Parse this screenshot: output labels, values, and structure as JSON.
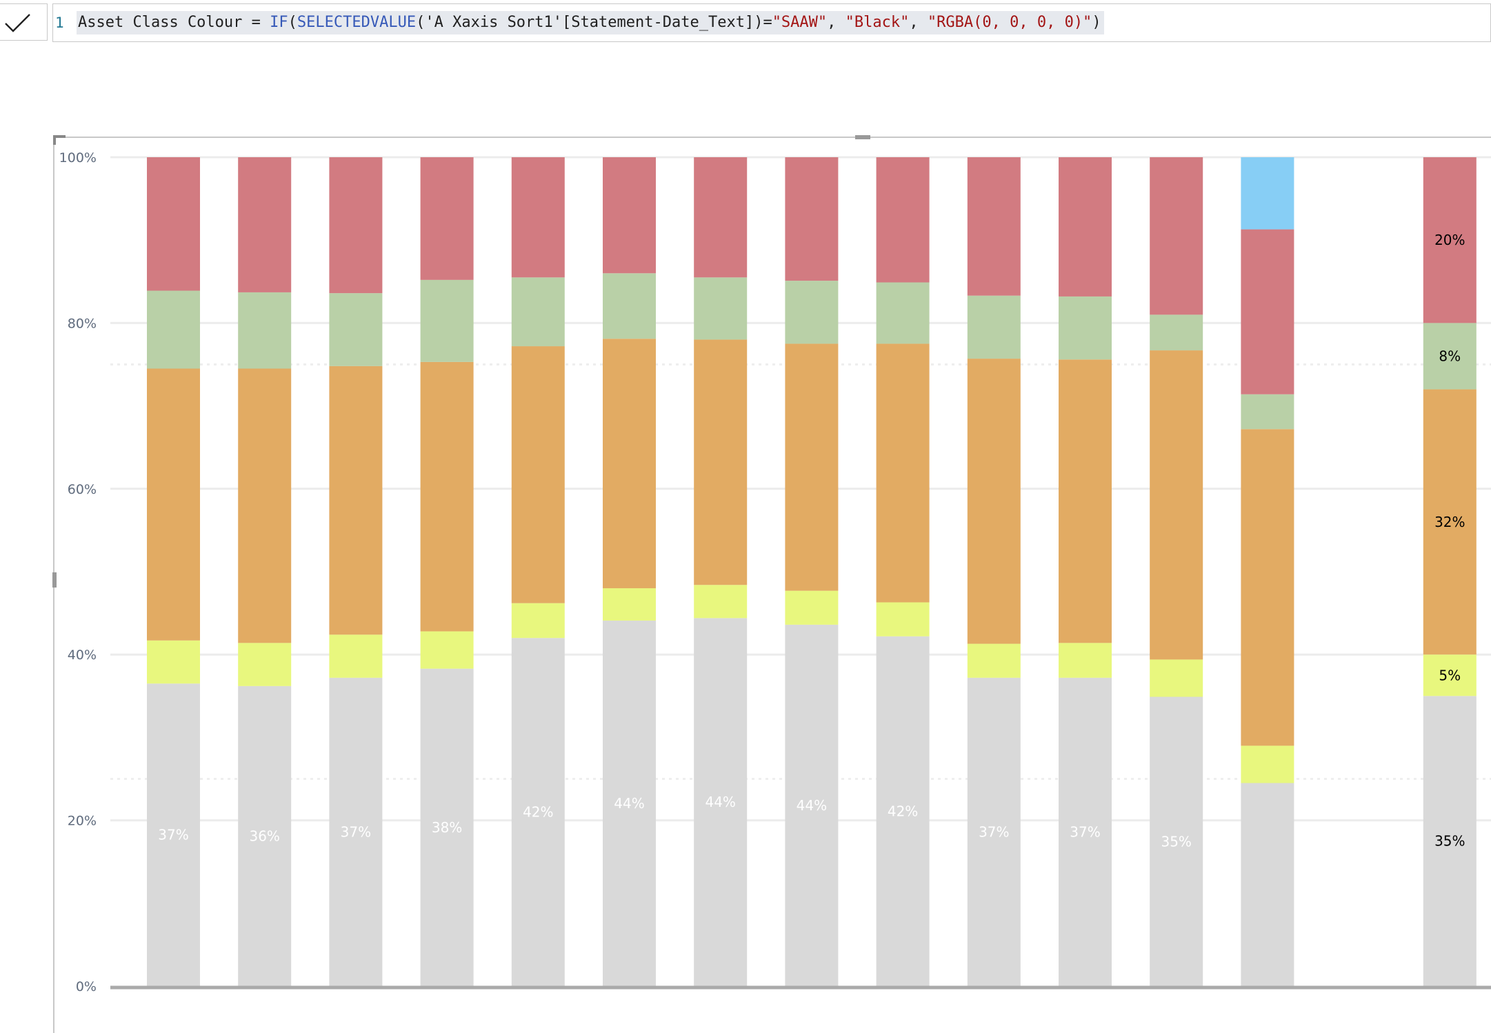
{
  "formula": {
    "line_number": "1",
    "measure_name": "Asset Class Colour",
    "operator": " = ",
    "if_fn": "IF",
    "selectedvalue_fn": "SELECTEDVALUE",
    "column_ref": "'A Xaxis Sort1'[Statement-Date_Text]",
    "eq": "=",
    "arg1": "\"SAAW\"",
    "arg2": "\"Black\"",
    "arg3": "\"RGBA(0, 0, 0, 0)\"",
    "commit_icon": "checkmark-icon"
  },
  "colors": {
    "grey": "#d9d9d9",
    "yellow": "#e8f77e",
    "orange": "#e2ab63",
    "green": "#b9d0a7",
    "red": "#d27b81",
    "blue": "#87cef5",
    "gridline": "#ececec",
    "axis": "#aaaaaa",
    "label_white": "#ffffff",
    "label_black": "#000000"
  },
  "chart_data": {
    "type": "bar",
    "stacked": "100%",
    "ylim": [
      0,
      100
    ],
    "y_ticks": [
      "0%",
      "20%",
      "40%",
      "60%",
      "80%",
      "100%"
    ],
    "x_tick_labels": [
      "",
      "",
      "",
      "",
      "",
      "",
      "",
      "",
      "",
      "",
      "",
      "",
      "",
      "",
      ""
    ],
    "series_order": [
      "grey",
      "yellow",
      "orange",
      "green",
      "red",
      "blue"
    ],
    "bars": [
      {
        "grey": 36.5,
        "yellow": 5.2,
        "orange": 32.8,
        "green": 9.4,
        "red": 16.1,
        "blue": 0,
        "label": "37%",
        "label_color": "label_white"
      },
      {
        "grey": 36.2,
        "yellow": 5.2,
        "orange": 33.1,
        "green": 9.2,
        "red": 16.3,
        "blue": 0,
        "label": "36%",
        "label_color": "label_white"
      },
      {
        "grey": 37.2,
        "yellow": 5.2,
        "orange": 32.4,
        "green": 8.8,
        "red": 16.4,
        "blue": 0,
        "label": "37%",
        "label_color": "label_white"
      },
      {
        "grey": 38.3,
        "yellow": 4.5,
        "orange": 32.5,
        "green": 9.9,
        "red": 14.8,
        "blue": 0,
        "label": "38%",
        "label_color": "label_white"
      },
      {
        "grey": 42.0,
        "yellow": 4.2,
        "orange": 31.0,
        "green": 8.3,
        "red": 14.5,
        "blue": 0,
        "label": "42%",
        "label_color": "label_white"
      },
      {
        "grey": 44.1,
        "yellow": 3.9,
        "orange": 30.1,
        "green": 7.9,
        "red": 14.0,
        "blue": 0,
        "label": "44%",
        "label_color": "label_white"
      },
      {
        "grey": 44.4,
        "yellow": 4.0,
        "orange": 29.6,
        "green": 7.5,
        "red": 14.5,
        "blue": 0,
        "label": "44%",
        "label_color": "label_white"
      },
      {
        "grey": 43.6,
        "yellow": 4.1,
        "orange": 29.8,
        "green": 7.6,
        "red": 14.9,
        "blue": 0,
        "label": "44%",
        "label_color": "label_white"
      },
      {
        "grey": 42.2,
        "yellow": 4.1,
        "orange": 31.2,
        "green": 7.4,
        "red": 15.1,
        "blue": 0,
        "label": "42%",
        "label_color": "label_white"
      },
      {
        "grey": 37.2,
        "yellow": 4.1,
        "orange": 34.4,
        "green": 7.6,
        "red": 16.7,
        "blue": 0,
        "label": "37%",
        "label_color": "label_white"
      },
      {
        "grey": 37.2,
        "yellow": 4.2,
        "orange": 34.2,
        "green": 7.6,
        "red": 16.8,
        "blue": 0,
        "label": "37%",
        "label_color": "label_white"
      },
      {
        "grey": 34.9,
        "yellow": 4.5,
        "orange": 37.3,
        "green": 4.3,
        "red": 19.0,
        "blue": 0,
        "label": "35%",
        "label_color": "label_white"
      },
      {
        "grey": 24.5,
        "yellow": 4.5,
        "orange": 38.2,
        "green": 4.2,
        "red": 19.9,
        "blue": 8.7,
        "label": "",
        "label_color": "label_white"
      },
      {
        "grey": 0,
        "yellow": 0,
        "orange": 0,
        "green": 0,
        "red": 0,
        "blue": 0,
        "label": "",
        "label_color": "label_white"
      },
      {
        "grey": 35.0,
        "yellow": 5.0,
        "orange": 32.0,
        "green": 8.0,
        "red": 20.0,
        "blue": 0,
        "label": "35%",
        "label_color": "label_black",
        "extra_labels": {
          "yellow": "5%",
          "orange": "32%",
          "green": "8%",
          "red": "20%"
        }
      }
    ]
  }
}
